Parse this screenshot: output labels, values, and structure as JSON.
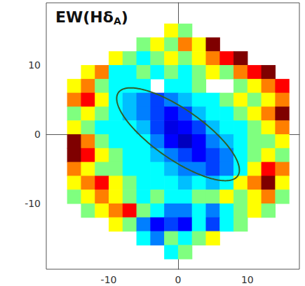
{
  "chart_data": {
    "type": "heatmap",
    "title": "EW(HδA)",
    "xlim": [
      -19,
      17.5
    ],
    "ylim": [
      -19.5,
      19
    ],
    "xticks": [
      -10,
      0,
      10
    ],
    "yticks": [
      -10,
      0,
      10
    ],
    "grid": false,
    "zlim": [
      0,
      8
    ],
    "x": [
      -15,
      -13,
      -11,
      -9,
      -7,
      -5,
      -3,
      -1,
      1,
      3,
      5,
      7,
      9,
      11,
      13,
      15
    ],
    "y": [
      15,
      13,
      11,
      9,
      7,
      5,
      3,
      1,
      -1,
      -3,
      -5,
      -7,
      -9,
      -11,
      -13,
      -15,
      -17
    ],
    "cells": [
      [
        null,
        null,
        null,
        null,
        null,
        null,
        null,
        5,
        4,
        null,
        null,
        null,
        null,
        null,
        null,
        null
      ],
      [
        null,
        null,
        null,
        null,
        null,
        4,
        5,
        4,
        6,
        5,
        8,
        null,
        null,
        null,
        null,
        null
      ],
      [
        null,
        null,
        null,
        5,
        4,
        3,
        4,
        5,
        4,
        5,
        6,
        7,
        8,
        null,
        null,
        null
      ],
      [
        null,
        5,
        6,
        3,
        3,
        4,
        3,
        4,
        3,
        4,
        5,
        4,
        6,
        7,
        9,
        null
      ],
      [
        5,
        6,
        4,
        3,
        3,
        3,
        null,
        3,
        3,
        4,
        null,
        null,
        4,
        5,
        6,
        7
      ],
      [
        6,
        7,
        5,
        3,
        2.5,
        2,
        1.5,
        2,
        2.5,
        3,
        3,
        4,
        5,
        4,
        5,
        6
      ],
      [
        4,
        5,
        4,
        3,
        2.5,
        2,
        1.5,
        1,
        1.5,
        2.5,
        3,
        3,
        4,
        5,
        6,
        8
      ],
      [
        5,
        4,
        3,
        3,
        3,
        2.5,
        1.5,
        0.8,
        1,
        1.5,
        2.5,
        3,
        3,
        4,
        5,
        6
      ],
      [
        8,
        6,
        4,
        3,
        3,
        3,
        2,
        1,
        0.5,
        1,
        2,
        2.5,
        3,
        4,
        4,
        5
      ],
      [
        9,
        7,
        5,
        4,
        3,
        3,
        2.5,
        2,
        1.5,
        1,
        1.5,
        2,
        3,
        4,
        5,
        4
      ],
      [
        6,
        5,
        4,
        4,
        3,
        3,
        3,
        2.5,
        2,
        2,
        1.5,
        2,
        3,
        5,
        7,
        6
      ],
      [
        5,
        6,
        7,
        5,
        4,
        3,
        3,
        3,
        2.5,
        3,
        2.5,
        3,
        5,
        6,
        8,
        5
      ],
      [
        4,
        5,
        6,
        5,
        4,
        3,
        4,
        3,
        3,
        4,
        4,
        5,
        4,
        5,
        6,
        4
      ],
      [
        null,
        4,
        5,
        6,
        7,
        4,
        3,
        2,
        2,
        3,
        2,
        3,
        4,
        5,
        4,
        null
      ],
      [
        null,
        null,
        null,
        5,
        4,
        2,
        1,
        1.5,
        1,
        3,
        1.5,
        3,
        4,
        null,
        null,
        null
      ],
      [
        null,
        null,
        null,
        null,
        null,
        3,
        2,
        4,
        3,
        4,
        5,
        null,
        null,
        null,
        null,
        null
      ],
      [
        null,
        null,
        null,
        null,
        null,
        null,
        null,
        3,
        4,
        null,
        null,
        null,
        null,
        null,
        null,
        null
      ]
    ],
    "ellipses": [
      {
        "center": [
          0,
          0
        ],
        "a": 10.5,
        "b": 3.6,
        "angle": -35,
        "color": "#2f5e2a"
      }
    ]
  }
}
